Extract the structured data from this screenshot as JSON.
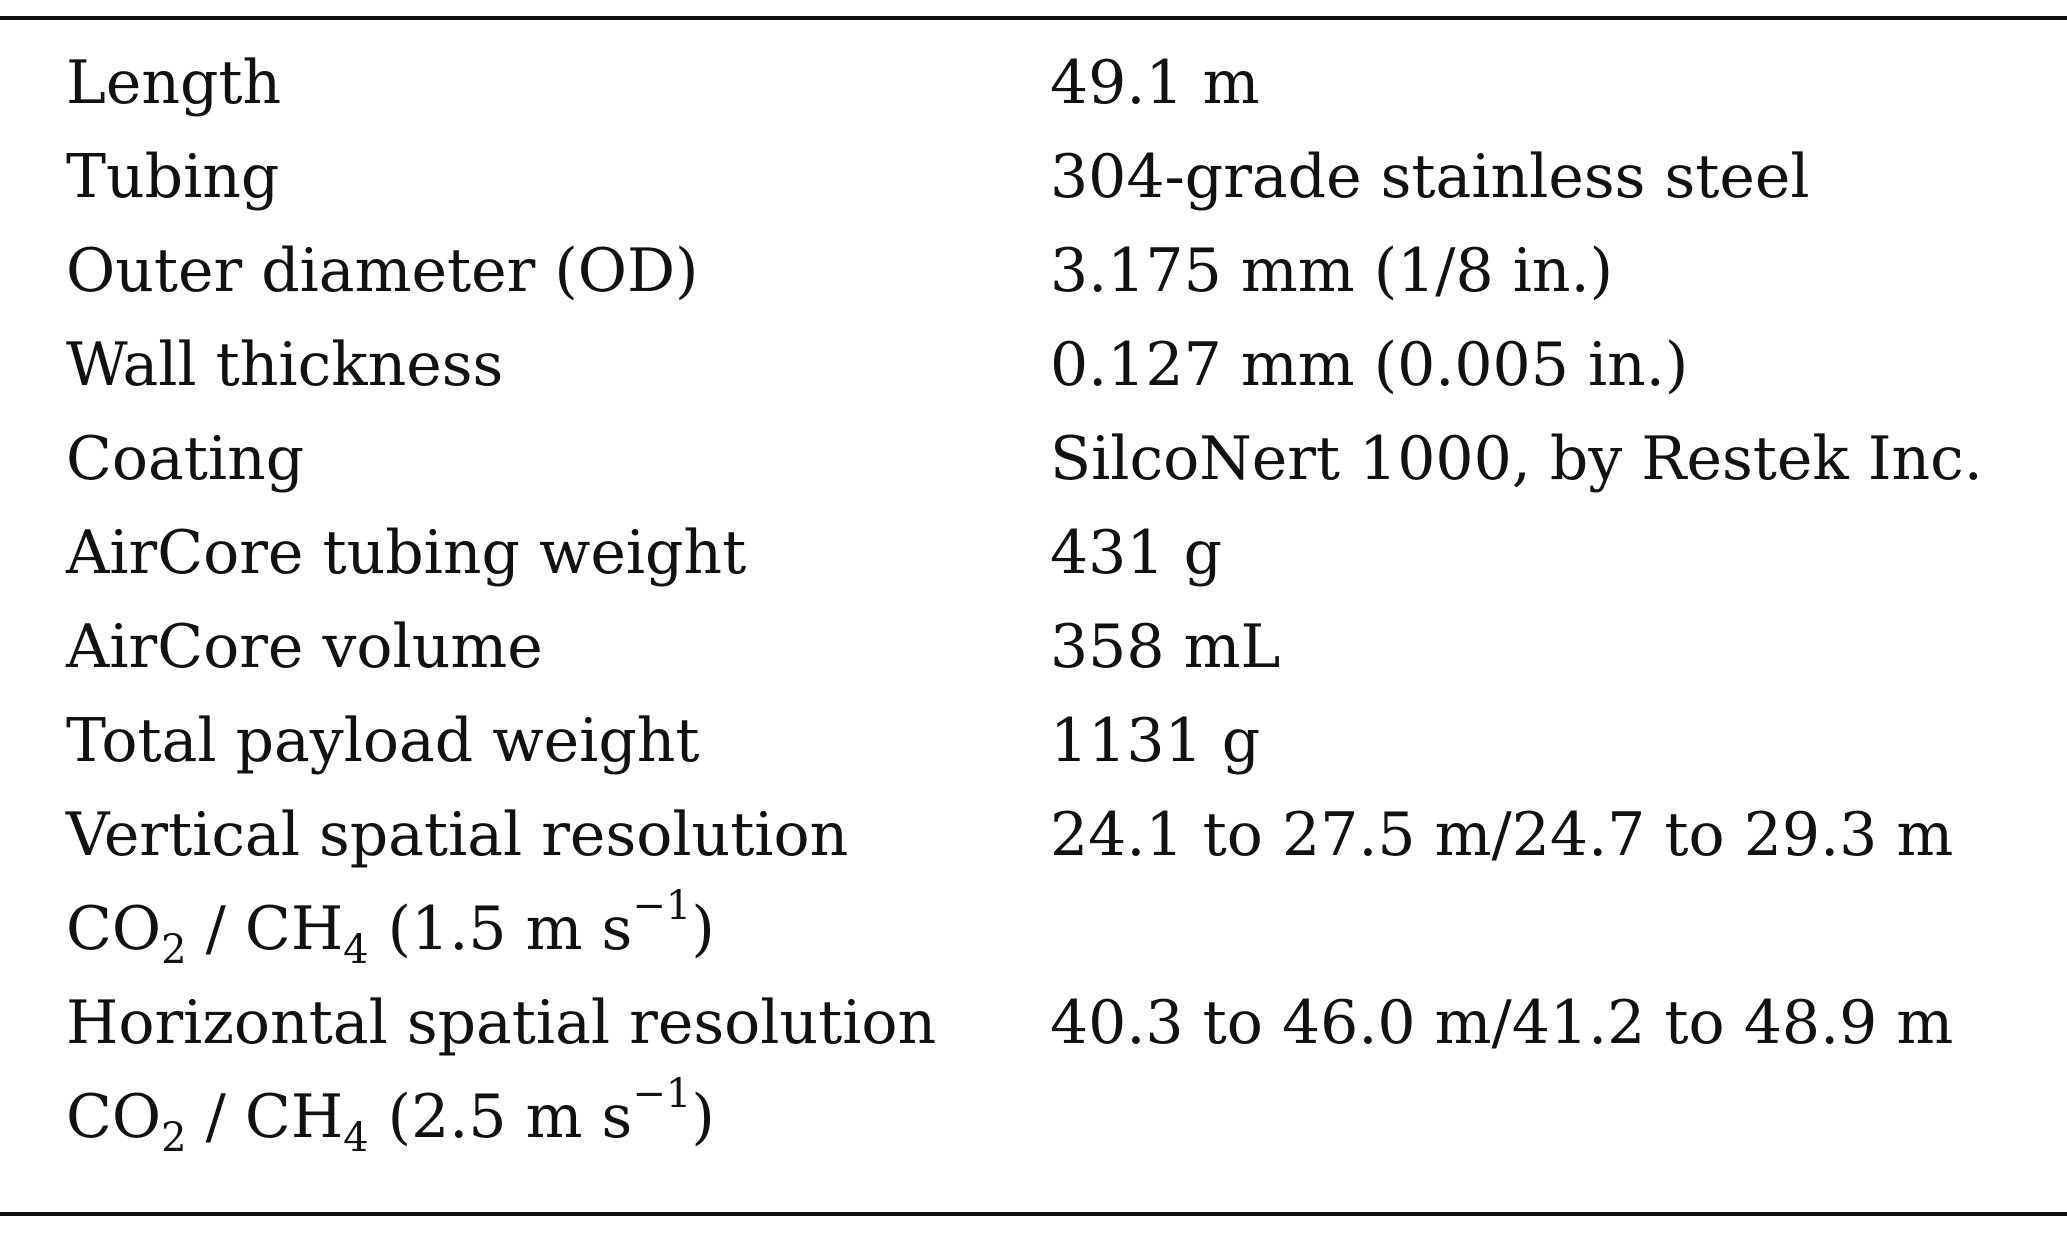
{
  "table": {
    "rows": [
      {
        "label": "Length",
        "value": "49.1 m"
      },
      {
        "label": "Tubing",
        "value": "304-grade stainless steel"
      },
      {
        "label": "Outer diameter (OD)",
        "value": "3.175 mm (1/8 in.)"
      },
      {
        "label": "Wall thickness",
        "value": "0.127 mm (0.005 in.)"
      },
      {
        "label": "Coating",
        "value": "SilcoNert 1000, by Restek Inc."
      },
      {
        "label": "AirCore tubing weight",
        "value": "431 g"
      },
      {
        "label": "AirCore volume",
        "value": "358 mL"
      },
      {
        "label": "Total payload weight",
        "value": "1131 g"
      }
    ],
    "vertical": {
      "line1": "Vertical spatial resolution",
      "co": "CO",
      "co_sub": "2",
      "sep": " / CH",
      "ch_sub": "4",
      "speed": " (1.5 m s",
      "exp": "−1",
      "close": ")",
      "value": "24.1 to 27.5 m/24.7 to 29.3 m"
    },
    "horizontal": {
      "line1": "Horizontal spatial resolution",
      "co": "CO",
      "co_sub": "2",
      "sep": " / CH",
      "ch_sub": "4",
      "speed": " (2.5 m s",
      "exp": "−1",
      "close": ")",
      "value": "40.3 to 46.0 m/41.2 to 48.9 m"
    }
  }
}
